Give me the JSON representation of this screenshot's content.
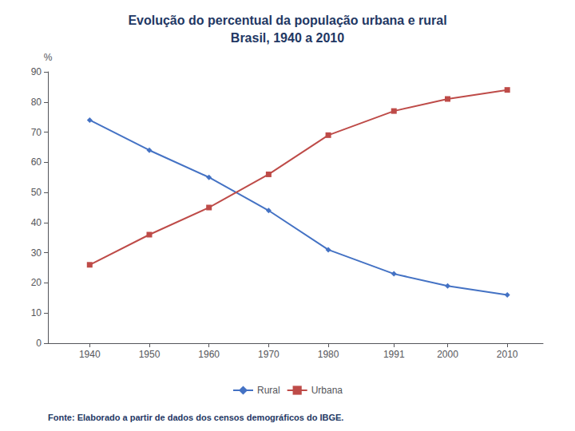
{
  "chart_data": {
    "type": "line",
    "title": "Evolução do percentual da população urbana e rural",
    "subtitle": "Brasil, 1940 a 2010",
    "annotations": [
      "Fonte: Elaborado a partir de dados dos censos demográficos do IBGE."
    ],
    "y_label": "%",
    "x": [
      1940,
      1950,
      1960,
      1970,
      1980,
      1991,
      2000,
      2010
    ],
    "series": [
      {
        "name": "Rural",
        "color": "#4472C4",
        "marker": "diamond",
        "values": [
          74,
          64,
          55,
          44,
          31,
          23,
          19,
          16
        ]
      },
      {
        "name": "Urbana",
        "color": "#BE4B48",
        "marker": "square",
        "values": [
          26,
          36,
          45,
          56,
          69,
          77,
          81,
          84
        ]
      }
    ],
    "xlim": [
      1933,
      2016
    ],
    "xticks": [
      1940,
      1950,
      1960,
      1970,
      1980,
      1991,
      2000,
      2010
    ],
    "ylim": [
      0,
      90
    ],
    "yticks": [
      0,
      10,
      20,
      30,
      40,
      50,
      60,
      70,
      80,
      90
    ],
    "grid": false,
    "legend": "bottom"
  }
}
